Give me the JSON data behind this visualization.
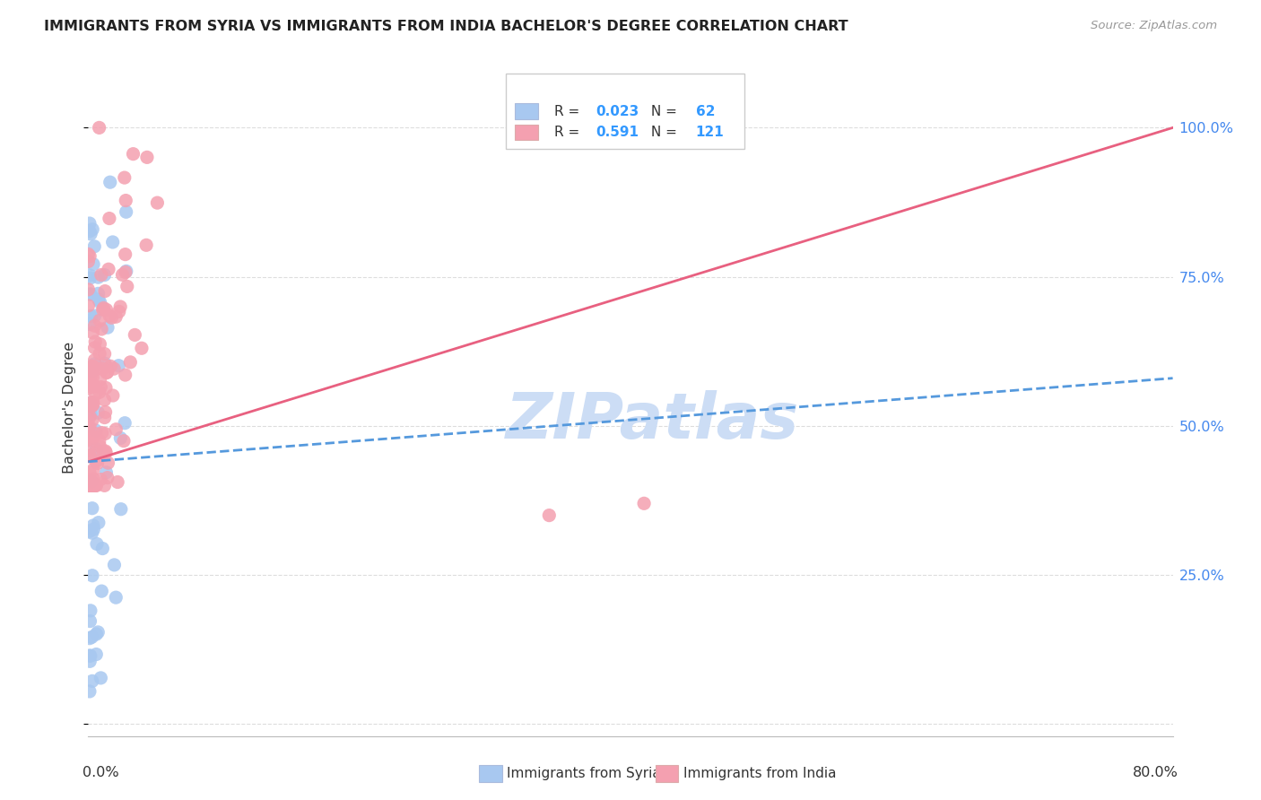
{
  "title": "IMMIGRANTS FROM SYRIA VS IMMIGRANTS FROM INDIA BACHELOR'S DEGREE CORRELATION CHART",
  "source": "Source: ZipAtlas.com",
  "ylabel": "Bachelor's Degree",
  "xlim": [
    0.0,
    0.8
  ],
  "ylim": [
    -0.02,
    1.08
  ],
  "legend_syria_R": "0.023",
  "legend_syria_N": "62",
  "legend_india_R": "0.591",
  "legend_india_N": "121",
  "syria_color": "#a8c8f0",
  "india_color": "#f4a0b0",
  "syria_line_color": "#5599dd",
  "india_line_color": "#e86080",
  "syria_line_dash": true,
  "india_line_dash": false,
  "watermark_text": "ZIPatlas",
  "watermark_color": "#ccddf5",
  "ytick_vals": [
    0.0,
    0.25,
    0.5,
    0.75,
    1.0
  ],
  "ytick_labels_right": [
    "",
    "25.0%",
    "50.0%",
    "75.0%",
    "100.0%"
  ],
  "grid_color": "#dddddd",
  "title_fontsize": 11.5,
  "source_fontsize": 9.5
}
